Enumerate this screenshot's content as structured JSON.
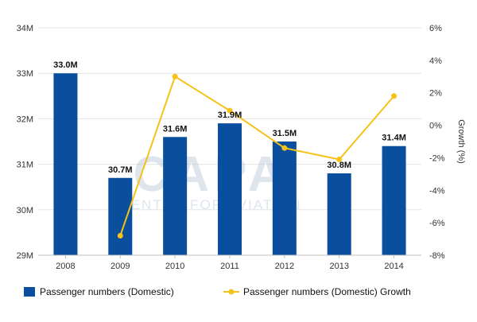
{
  "chart_data": {
    "type": "bar",
    "categories": [
      "2008",
      "2009",
      "2010",
      "2011",
      "2012",
      "2013",
      "2014"
    ],
    "series": [
      {
        "name": "Passenger numbers (Domestic)",
        "kind": "bar",
        "axis": "left",
        "color": "#0a4f9e",
        "values": [
          33.0,
          30.7,
          31.6,
          31.9,
          31.5,
          30.8,
          31.4
        ],
        "data_labels": [
          "33.0M",
          "30.7M",
          "31.6M",
          "31.9M",
          "31.5M",
          "30.8M",
          "31.4M"
        ]
      },
      {
        "name": "Passenger numbers (Domestic) Growth",
        "kind": "line",
        "axis": "right",
        "color": "#f5c218",
        "values": [
          null,
          -6.8,
          3.0,
          0.9,
          -1.4,
          -2.1,
          1.8
        ]
      }
    ],
    "y_left": {
      "min": 29,
      "max": 34,
      "ticks": [
        29,
        30,
        31,
        32,
        33,
        34
      ],
      "tick_labels": [
        "29M",
        "30M",
        "31M",
        "32M",
        "33M",
        "34M"
      ]
    },
    "y_right": {
      "min": -8,
      "max": 6,
      "label": "Growth (%)",
      "ticks": [
        -8,
        -6,
        -4,
        -2,
        0,
        2,
        4,
        6
      ],
      "tick_labels": [
        "-8%",
        "-6%",
        "-4%",
        "-2%",
        "0%",
        "2%",
        "4%",
        "6%"
      ]
    },
    "grid": true,
    "legend_position": "bottom"
  },
  "watermark": {
    "text_main": "CAPA",
    "text_sub": "CENTRE FOR AVIATION"
  }
}
